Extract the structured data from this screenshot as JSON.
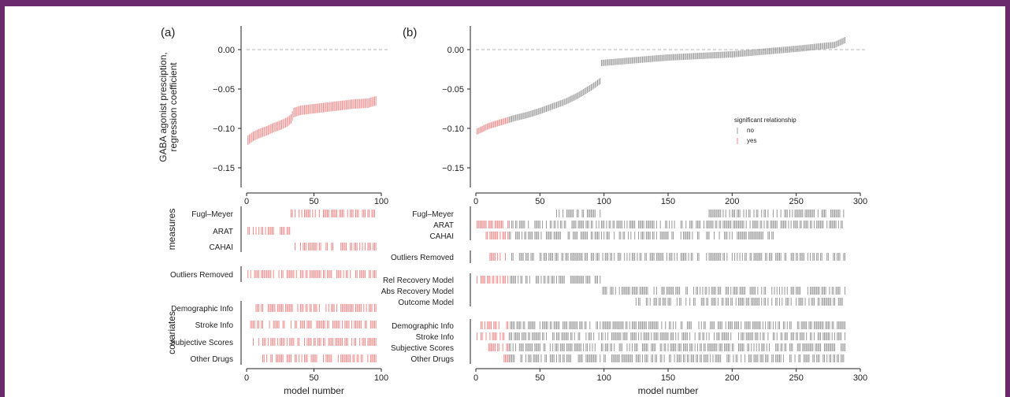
{
  "colors": {
    "frame": "#6b2a6e",
    "no": "#9a9a9a",
    "yes": "#ef8b8b",
    "axis": "#222222",
    "zero_line": "#9a9a9a"
  },
  "chart_data": [
    {
      "type": "specification-curve",
      "panel_label": "(a)",
      "ylabel": "GABA agonist presciption,\nregression coefficient",
      "xlim": [
        0,
        100
      ],
      "ylim": [
        -0.175,
        0.03
      ],
      "yticks": [
        0.0,
        -0.05,
        -0.1,
        -0.15
      ],
      "ytick_labels": [
        "0.00",
        "−0.05",
        "−0.10",
        "−0.15"
      ],
      "xticks": [
        0,
        50,
        100
      ],
      "reference_line": 0.0,
      "n_models": 96,
      "estimate_knots": [
        [
          1,
          -0.115
        ],
        [
          5,
          -0.11
        ],
        [
          10,
          -0.106
        ],
        [
          15,
          -0.103
        ],
        [
          20,
          -0.099
        ],
        [
          25,
          -0.096
        ],
        [
          30,
          -0.092
        ],
        [
          33,
          -0.088
        ],
        [
          35,
          -0.08
        ],
        [
          40,
          -0.077
        ],
        [
          50,
          -0.075
        ],
        [
          60,
          -0.073
        ],
        [
          70,
          -0.071
        ],
        [
          80,
          -0.069
        ],
        [
          90,
          -0.068
        ],
        [
          96,
          -0.065
        ]
      ],
      "whisker_halfwidth": 0.006,
      "all_significant": "yes",
      "categories_groups": [
        {
          "group_label": "measures",
          "rows": [
            {
              "label": "Fugl–Meyer",
              "ranges": [
                [
                  33,
                  71
                ],
                [
                  72,
                  96
                ]
              ]
            },
            {
              "label": "ARAT",
              "ranges": [
                [
                  1,
                  32
                ]
              ]
            },
            {
              "label": "CAHAI",
              "ranges": [
                [
                  36,
                  96
                ]
              ]
            }
          ]
        },
        {
          "group_label": "",
          "rows": [
            {
              "label": "Outliers Removed",
              "ranges": [
                [
                  1,
                  96
                ]
              ]
            }
          ]
        },
        {
          "group_label": "covariates",
          "rows": [
            {
              "label": "Demographic Info",
              "ranges": [
                [
                  7,
                  96
                ]
              ]
            },
            {
              "label": "Stroke Info",
              "ranges": [
                [
                  3,
                  96
                ]
              ]
            },
            {
              "label": "Subjective Scores",
              "ranges": [
                [
                  5,
                  96
                ]
              ]
            },
            {
              "label": "Other Drugs",
              "ranges": [
                [
                  12,
                  96
                ]
              ]
            }
          ]
        }
      ],
      "xlabel": "model number"
    },
    {
      "type": "specification-curve",
      "panel_label": "(b)",
      "xlim": [
        0,
        300
      ],
      "ylim": [
        -0.175,
        0.03
      ],
      "yticks": [
        0.0,
        -0.05,
        -0.1,
        -0.15
      ],
      "ytick_labels": [
        "0.00",
        "−0.05",
        "−0.10",
        "−0.15"
      ],
      "xticks": [
        0,
        50,
        100,
        150,
        200,
        250,
        300
      ],
      "reference_line": 0.0,
      "n_models": 288,
      "estimate_knots": [
        [
          1,
          -0.104
        ],
        [
          10,
          -0.097
        ],
        [
          20,
          -0.092
        ],
        [
          30,
          -0.087
        ],
        [
          40,
          -0.083
        ],
        [
          50,
          -0.078
        ],
        [
          60,
          -0.072
        ],
        [
          70,
          -0.066
        ],
        [
          80,
          -0.058
        ],
        [
          90,
          -0.048
        ],
        [
          97,
          -0.04
        ],
        [
          98,
          -0.017
        ],
        [
          120,
          -0.014
        ],
        [
          150,
          -0.01
        ],
        [
          200,
          -0.006
        ],
        [
          250,
          0.001
        ],
        [
          280,
          0.006
        ],
        [
          288,
          0.012
        ]
      ],
      "whisker_halfwidth": 0.004,
      "significant_models_upto": 25,
      "legend": {
        "title": "significant relationship",
        "entries": [
          "no",
          "yes"
        ],
        "placement": "center-right"
      },
      "categories_groups": [
        {
          "group_label": "",
          "rows": [
            {
              "label": "Fugl–Meyer",
              "ranges": [
                [
                  63,
                  97
                ],
                [
                  182,
                  288
                ]
              ]
            },
            {
              "label": "ARAT",
              "ranges": [
                [
                  1,
                  288
                ]
              ]
            },
            {
              "label": "CAHAI",
              "ranges": [
                [
                  8,
                  232
                ]
              ]
            }
          ]
        },
        {
          "group_label": "",
          "rows": [
            {
              "label": "Outliers Removed",
              "ranges": [
                [
                  11,
                  288
                ]
              ]
            }
          ]
        },
        {
          "group_label": "",
          "rows": [
            {
              "label": "Rel Recovery Model",
              "ranges": [
                [
                  1,
                  97
                ]
              ]
            },
            {
              "label": "Abs Recovery Model",
              "ranges": [
                [
                  98,
                  288
                ]
              ]
            },
            {
              "label": "Outcome Model",
              "ranges": [
                [
                  125,
                  288
                ]
              ]
            }
          ]
        },
        {
          "group_label": "",
          "rows": [
            {
              "label": "Demographic Info",
              "ranges": [
                [
                  4,
                  288
                ]
              ]
            },
            {
              "label": "Stroke Info",
              "ranges": [
                [
                  1,
                  288
                ]
              ]
            },
            {
              "label": "Subjective Scores",
              "ranges": [
                [
                  10,
                  288
                ]
              ]
            },
            {
              "label": "Other Drugs",
              "ranges": [
                [
                  22,
                  288
                ]
              ]
            }
          ]
        }
      ],
      "xlabel": "model number"
    }
  ]
}
